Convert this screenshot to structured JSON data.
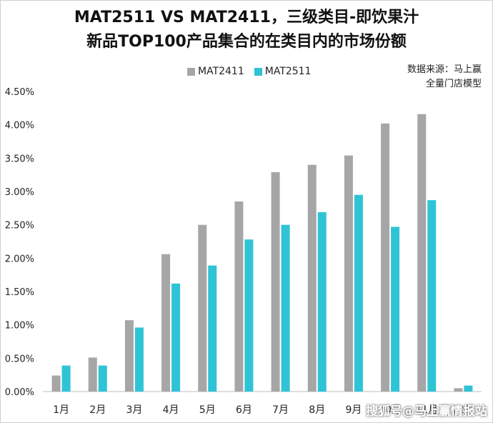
{
  "title": {
    "line1": "MAT2511 VS MAT2411，三级类目-即饮果汁",
    "line2": "新品TOP100产品集合的在类目内的市场份额"
  },
  "source": {
    "line1": "数据来源：马上赢",
    "line2": "全量门店模型"
  },
  "watermark": "搜狐号@马上赢情报站",
  "colors": {
    "MAT2411": "#a6a6a6",
    "MAT2511": "#2ec4d6"
  },
  "chart_data": {
    "type": "bar",
    "categories": [
      "1月",
      "2月",
      "3月",
      "4月",
      "5月",
      "6月",
      "7月",
      "8月",
      "9月",
      "10月",
      "11月",
      "12月"
    ],
    "series": [
      {
        "name": "MAT2411",
        "values": [
          0.24,
          0.51,
          1.07,
          2.06,
          2.5,
          2.85,
          3.29,
          3.4,
          3.54,
          4.02,
          4.16,
          0.05
        ]
      },
      {
        "name": "MAT2511",
        "values": [
          0.39,
          0.39,
          0.96,
          1.62,
          1.89,
          2.28,
          2.5,
          2.69,
          2.95,
          2.47,
          2.87,
          0.09
        ]
      }
    ],
    "ylim": [
      0,
      4.5
    ],
    "yticks": [
      "0.00%",
      "0.50%",
      "1.00%",
      "1.50%",
      "2.00%",
      "2.50%",
      "3.00%",
      "3.50%",
      "4.00%",
      "4.50%"
    ],
    "legend_position": "top",
    "grid": false
  }
}
